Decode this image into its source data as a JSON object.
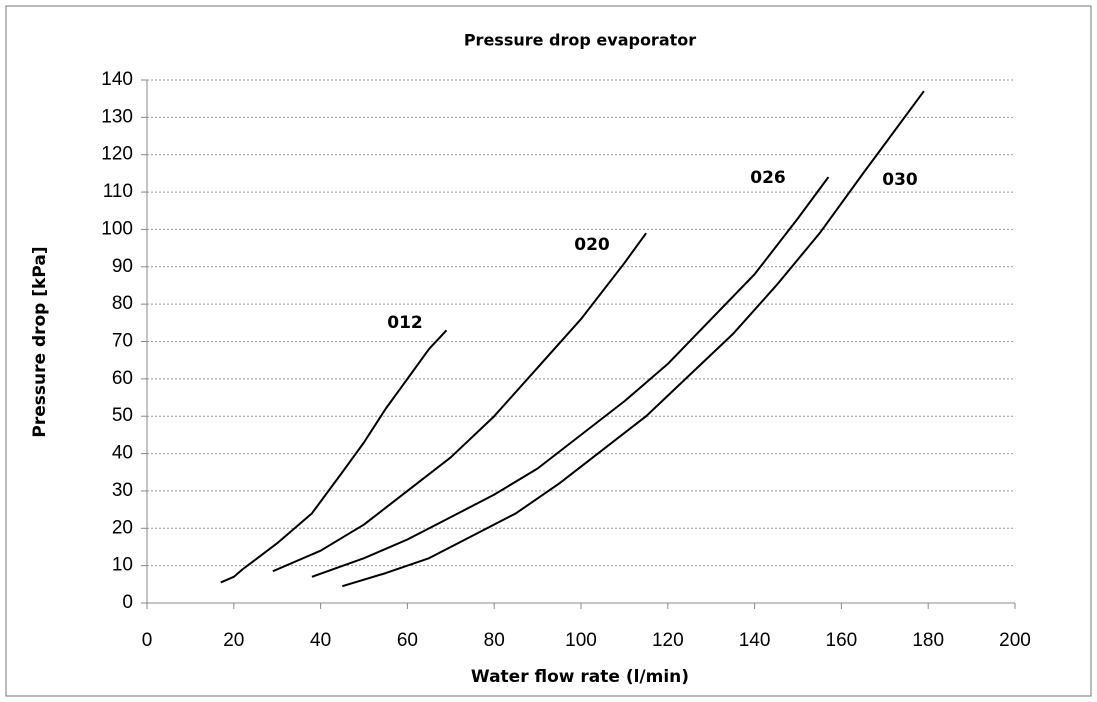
{
  "chart_data": {
    "type": "line",
    "title": "Pressure drop evaporator",
    "x_label": "Water flow rate (l/min)",
    "y_label": "Pressure drop [kPa]",
    "xlim": [
      0,
      200
    ],
    "xticks": [
      0,
      20,
      40,
      60,
      80,
      100,
      120,
      140,
      160,
      180,
      200
    ],
    "ylim": [
      0,
      140
    ],
    "yticks": [
      0,
      10,
      20,
      30,
      40,
      50,
      60,
      70,
      80,
      90,
      100,
      110,
      120,
      130,
      140
    ],
    "grid": true,
    "series": [
      {
        "name": "012",
        "color": "#000000",
        "x": [
          17,
          20,
          22,
          30,
          38,
          45,
          50,
          55,
          60,
          65,
          69
        ],
        "values": [
          5.5,
          7,
          9,
          16,
          24,
          35,
          43,
          52,
          60,
          68,
          73
        ]
      },
      {
        "name": "020",
        "color": "#000000",
        "x": [
          29,
          40,
          50,
          60,
          70,
          80,
          90,
          100,
          110,
          115
        ],
        "values": [
          8.5,
          14,
          21,
          30,
          39,
          50,
          63,
          76,
          91,
          99
        ]
      },
      {
        "name": "026",
        "color": "#000000",
        "x": [
          38,
          50,
          60,
          70,
          80,
          90,
          100,
          110,
          120,
          130,
          140,
          150,
          157
        ],
        "values": [
          7,
          12,
          17,
          23,
          29,
          36,
          45,
          54,
          64,
          76,
          88,
          103,
          114
        ]
      },
      {
        "name": "030",
        "color": "#000000",
        "x": [
          45,
          55,
          65,
          75,
          85,
          95,
          105,
          115,
          125,
          135,
          145,
          155,
          165,
          172,
          179
        ],
        "values": [
          4.5,
          8,
          12,
          18,
          24,
          32,
          41,
          50,
          61,
          72,
          85,
          99,
          115,
          126,
          137
        ]
      }
    ]
  }
}
